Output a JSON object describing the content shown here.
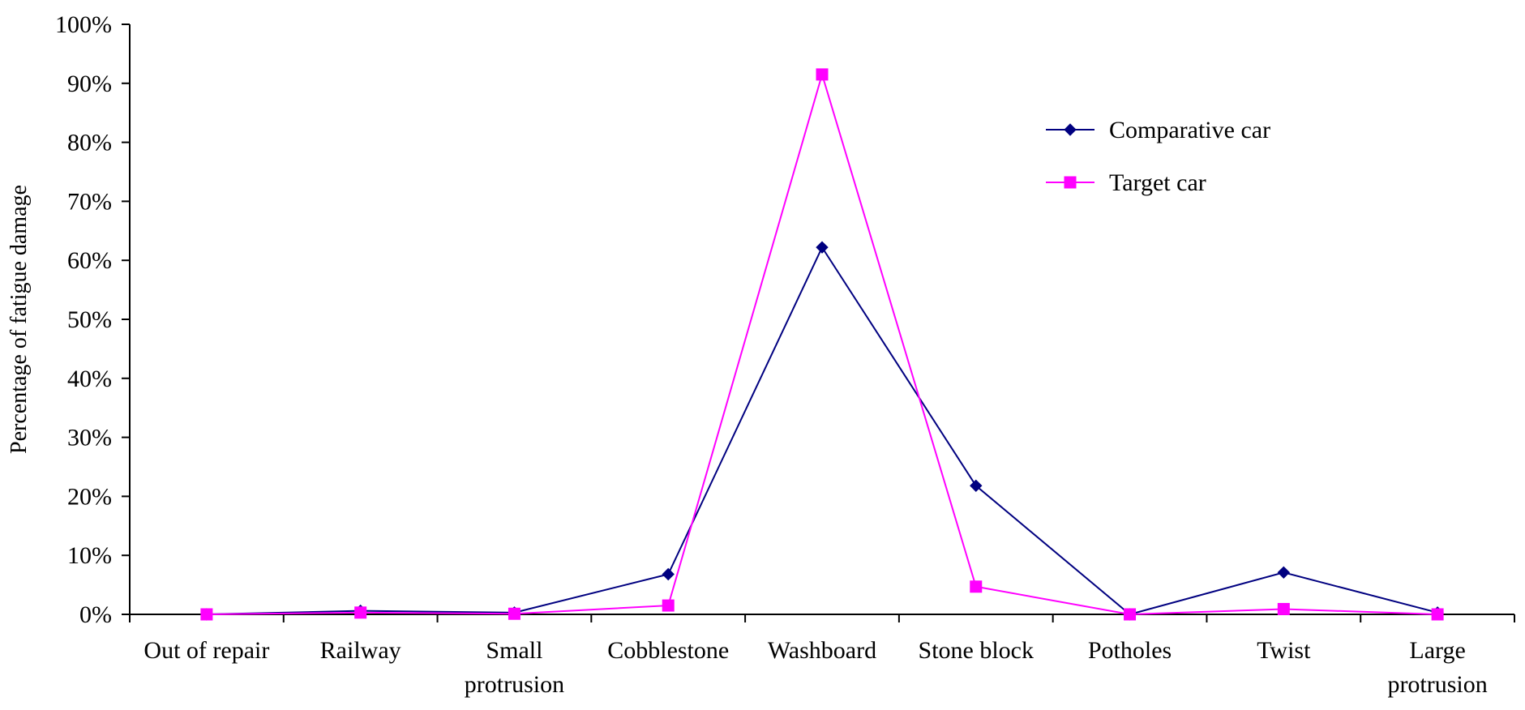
{
  "chart_data": {
    "type": "line",
    "title": "",
    "xlabel": "",
    "ylabel": "Percentage of fatigue damage",
    "ylim": [
      0,
      100
    ],
    "ytick_step": 10,
    "ytick_labels": [
      "0%",
      "10%",
      "20%",
      "30%",
      "40%",
      "50%",
      "60%",
      "70%",
      "80%",
      "90%",
      "100%"
    ],
    "grid": false,
    "legend_position": "top-right",
    "categories": [
      [
        "Out of repair"
      ],
      [
        "Railway"
      ],
      [
        "Small",
        "protrusion"
      ],
      [
        "Cobblestone"
      ],
      [
        "Washboard"
      ],
      [
        "Stone block"
      ],
      [
        "Potholes"
      ],
      [
        "Twist"
      ],
      [
        "Large",
        "protrusion"
      ]
    ],
    "series": [
      {
        "name": "Comparative car",
        "color": "#000080",
        "marker": "diamond",
        "values": [
          0.0,
          0.6,
          0.3,
          6.8,
          62.2,
          21.8,
          0.0,
          7.1,
          0.3
        ]
      },
      {
        "name": "Target car",
        "color": "#FF00FF",
        "marker": "square",
        "values": [
          0.0,
          0.3,
          0.1,
          1.5,
          91.5,
          4.7,
          0.0,
          0.9,
          0.0
        ]
      }
    ]
  }
}
